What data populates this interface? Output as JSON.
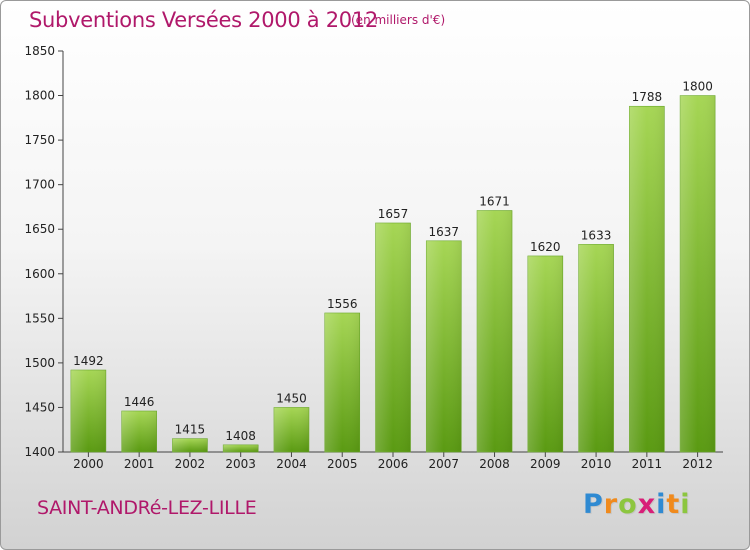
{
  "title": "Subventions Versées 2000 à 2012",
  "subtitle": "(en milliers d'€)",
  "commune": "SAINT-ANDRé-LEZ-LILLE",
  "logo": {
    "text": "Proxiti",
    "letters": [
      {
        "ch": "P",
        "color": "#2f8ad2"
      },
      {
        "ch": "r",
        "color": "#f08a1c"
      },
      {
        "ch": "o",
        "color": "#8cc63f"
      },
      {
        "ch": "x",
        "color": "#d81e78"
      },
      {
        "ch": "i",
        "color": "#2f8ad2"
      },
      {
        "ch": "t",
        "color": "#f08a1c"
      },
      {
        "ch": "i",
        "color": "#8cc63f"
      }
    ]
  },
  "colors": {
    "bar_light": "#a6d655",
    "bar_dark": "#5a9a12",
    "axis": "#444444",
    "title": "#b0186a"
  },
  "chart_data": {
    "type": "bar",
    "title": "Subventions Versées 2000 à 2012",
    "subtitle": "(en milliers d'€)",
    "xlabel": "",
    "ylabel": "",
    "categories": [
      "2000",
      "2001",
      "2002",
      "2003",
      "2004",
      "2005",
      "2006",
      "2007",
      "2008",
      "2009",
      "2010",
      "2011",
      "2012"
    ],
    "values": [
      1492,
      1446,
      1415,
      1408,
      1450,
      1556,
      1657,
      1637,
      1671,
      1620,
      1633,
      1788,
      1800
    ],
    "ylim": [
      1400,
      1850
    ],
    "yticks": [
      1400,
      1450,
      1500,
      1550,
      1600,
      1650,
      1700,
      1750,
      1800,
      1850
    ],
    "grid": false,
    "legend": "none"
  }
}
